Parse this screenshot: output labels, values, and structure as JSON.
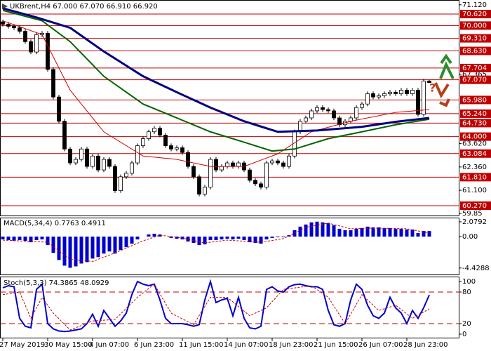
{
  "chart_data": [
    {
      "type": "candlestick",
      "title": "UKBrent,H4  67.000 67.070 66.910 66.920",
      "categories": [
        "27 May 2019",
        null,
        null,
        null,
        null,
        null,
        null,
        null,
        "30 May 15:00",
        null,
        null,
        null,
        null,
        null,
        null,
        null,
        "4 Jun 07:00",
        null,
        null,
        null,
        null,
        null,
        null,
        null,
        "6 Jun 23:00",
        null,
        null,
        null,
        null,
        null,
        null,
        null,
        "11 Jun 15:00",
        null,
        null,
        null,
        null,
        null,
        null,
        null,
        "14 Jun 07:00",
        null,
        null,
        null,
        null,
        null,
        null,
        null,
        "18 Jun 23:00",
        null,
        null,
        null,
        null,
        null,
        null,
        null,
        "21 Jun 15:00",
        null,
        null,
        null,
        null,
        null,
        null,
        null,
        "26 Jun 07:00",
        null,
        null,
        null,
        null,
        null,
        null,
        null,
        "28 Jun 23:00",
        null,
        null,
        null,
        null
      ],
      "open": [
        70.2,
        70.07,
        69.96,
        69.88,
        69.69,
        69.13,
        68.57,
        69.51,
        69.58,
        67.63,
        66.14,
        64.83,
        63.33,
        62.58,
        62.77,
        63.33,
        62.39,
        62.95,
        62.2,
        62.77,
        62.39,
        61.08,
        61.83,
        62.02,
        62.58,
        63.51,
        63.89,
        64.26,
        64.45,
        64.08,
        63.51,
        63.33,
        63.4,
        63.14,
        62.39,
        61.83,
        60.89,
        61.27,
        62.77,
        62.2,
        62.39,
        62.58,
        62.39,
        62.58,
        62.2,
        61.64,
        61.45,
        61.27,
        62.58,
        62.69,
        62.58,
        62.39,
        62.95,
        64.26,
        64.83,
        65.01,
        65.39,
        65.57,
        65.46,
        65.39,
        65.01,
        64.64,
        64.83,
        65.01,
        65.57,
        65.76,
        66.32,
        66.14,
        66.21,
        66.32,
        66.4,
        66.32,
        66.51,
        66.32,
        66.51,
        65.2,
        67.0
      ],
      "high": [
        70.32,
        70.19,
        70.08,
        70.0,
        69.81,
        69.25,
        69.63,
        69.7,
        69.7,
        67.75,
        66.26,
        64.95,
        63.45,
        62.89,
        63.45,
        63.45,
        63.07,
        63.07,
        62.89,
        62.89,
        62.51,
        61.95,
        62.14,
        62.7,
        63.63,
        64.01,
        64.38,
        64.57,
        64.57,
        64.2,
        63.63,
        63.52,
        63.52,
        63.26,
        62.51,
        61.95,
        61.39,
        62.89,
        62.89,
        62.51,
        62.7,
        62.7,
        62.7,
        62.7,
        62.32,
        61.76,
        61.57,
        62.7,
        62.81,
        62.81,
        62.7,
        63.07,
        64.38,
        64.95,
        65.13,
        65.51,
        65.69,
        65.69,
        65.58,
        65.51,
        65.13,
        64.95,
        65.13,
        65.69,
        65.88,
        66.44,
        66.44,
        66.33,
        66.44,
        66.52,
        66.52,
        66.63,
        66.63,
        66.63,
        66.63,
        67.12,
        67.07
      ],
      "low": [
        69.95,
        69.84,
        69.76,
        69.57,
        69.01,
        68.45,
        68.45,
        69.39,
        67.51,
        66.02,
        64.71,
        63.21,
        62.46,
        62.46,
        62.65,
        62.27,
        62.27,
        62.08,
        62.08,
        62.27,
        60.96,
        60.96,
        61.71,
        61.9,
        62.46,
        63.39,
        63.77,
        64.14,
        63.96,
        63.39,
        63.21,
        63.21,
        63.02,
        62.27,
        61.71,
        60.77,
        60.77,
        61.15,
        62.08,
        62.08,
        62.27,
        62.27,
        62.27,
        62.08,
        61.52,
        61.33,
        61.15,
        61.15,
        62.46,
        62.46,
        62.27,
        62.27,
        62.83,
        64.14,
        64.71,
        64.89,
        65.27,
        65.34,
        65.27,
        64.89,
        64.52,
        64.52,
        64.71,
        64.89,
        65.45,
        65.64,
        66.02,
        66.02,
        66.09,
        66.2,
        66.2,
        66.2,
        66.2,
        66.2,
        65.08,
        65.08,
        66.91
      ],
      "close": [
        70.07,
        69.96,
        69.88,
        69.69,
        69.13,
        68.57,
        69.51,
        69.58,
        67.63,
        66.14,
        64.83,
        63.33,
        62.58,
        62.77,
        63.33,
        62.39,
        62.95,
        62.2,
        62.77,
        62.39,
        61.08,
        61.83,
        62.02,
        62.58,
        63.51,
        63.89,
        64.26,
        64.45,
        64.08,
        63.51,
        63.33,
        63.4,
        63.14,
        62.39,
        61.83,
        60.89,
        61.27,
        62.77,
        62.2,
        62.39,
        62.58,
        62.39,
        62.58,
        62.2,
        61.64,
        61.45,
        61.27,
        62.58,
        62.69,
        62.58,
        62.39,
        62.95,
        64.26,
        64.83,
        65.01,
        65.39,
        65.57,
        65.46,
        65.39,
        65.01,
        64.64,
        64.83,
        65.01,
        65.57,
        65.76,
        66.32,
        66.14,
        66.21,
        66.32,
        66.4,
        66.32,
        66.51,
        66.32,
        66.51,
        65.2,
        67.0,
        66.92
      ],
      "up_color": "#ffffff",
      "down_color": "#000000",
      "lines": [
        {
          "color": "#cc0000",
          "width": 1,
          "x": [
            0,
            7,
            12,
            18,
            25,
            31,
            37,
            43,
            49,
            55,
            62,
            70,
            76
          ],
          "values": [
            70.26,
            69.51,
            66.51,
            64.26,
            62.95,
            62.77,
            62.39,
            62.39,
            63.07,
            64.26,
            64.83,
            65.31,
            65.46
          ]
        },
        {
          "color": "#006400",
          "width": 2,
          "x": [
            0,
            7,
            12,
            18,
            25,
            31,
            37,
            43,
            48,
            52,
            58,
            64,
            70,
            76
          ],
          "values": [
            70.82,
            70.26,
            69.13,
            67.26,
            65.76,
            65.01,
            64.26,
            63.7,
            63.22,
            63.33,
            63.89,
            64.26,
            64.64,
            64.94
          ]
        },
        {
          "color": "#000080",
          "width": 3,
          "x": [
            0,
            6,
            12,
            18,
            25,
            31,
            37,
            43,
            49,
            56,
            64,
            70,
            76
          ],
          "values": [
            70.93,
            70.44,
            69.88,
            68.6,
            67.26,
            66.4,
            65.57,
            64.83,
            64.26,
            64.33,
            64.53,
            64.8,
            65.01
          ]
        }
      ],
      "ylim": [
        59.7,
        71.38
      ],
      "yticks": [
        {
          "value": 71.12,
          "label": "71.120"
        },
        67.365,
        {
          "value": 63.62,
          "label": "63.620"
        },
        {
          "value": 62.36,
          "label": "62.360"
        },
        {
          "value": 61.1,
          "label": "61.100"
        },
        59.85
      ],
      "level_color": "#c00000",
      "levels": [
        {
          "value": 70.62,
          "label": "70.620"
        },
        {
          "value": 70,
          "label": "70.000"
        },
        {
          "value": 69.31,
          "label": "69.310"
        },
        {
          "value": 68.63,
          "label": "68.630"
        },
        67.704,
        {
          "value": 67.07,
          "label": "67.070"
        },
        {
          "value": 65.98,
          "label": "65.980"
        },
        {
          "value": 65.24,
          "label": "65.240"
        },
        {
          "value": 64.73,
          "label": "64.730"
        },
        {
          "value": 64,
          "label": "64.000"
        },
        63.084,
        {
          "value": 61.81,
          "label": "61.810"
        },
        {
          "value": 60.27,
          "label": "60.270"
        }
      ],
      "annotation": "?"
    },
    {
      "type": "macd",
      "title": "MACD(5,34,4) 0.7763 0.4911",
      "color": "#0000cd",
      "values": [
        -0.4,
        -0.5,
        -0.6,
        -0.5,
        -0.6,
        -0.8,
        -0.5,
        -0.4,
        -1.2,
        -2.3,
        -3.3,
        -4.1,
        -4.4,
        -4.2,
        -3.8,
        -3.6,
        -3.1,
        -2.9,
        -2.4,
        -2.1,
        -2.4,
        -1.9,
        -1.5,
        -1.0,
        -0.4,
        0.0,
        0.3,
        0.4,
        0.3,
        0.0,
        -0.2,
        -0.3,
        -0.4,
        -0.7,
        -0.9,
        -1.2,
        -1.1,
        -0.5,
        -0.5,
        -0.4,
        -0.3,
        -0.4,
        -0.3,
        -0.5,
        -0.8,
        -0.9,
        -1.0,
        -0.4,
        -0.2,
        -0.1,
        -0.1,
        0.2,
        0.9,
        1.4,
        1.7,
        2.0,
        2.1,
        2.0,
        1.9,
        1.6,
        1.1,
        0.9,
        0.9,
        1.1,
        1.2,
        1.4,
        1.3,
        1.3,
        1.2,
        1.2,
        1.1,
        1.1,
        1.0,
        1.0,
        0.5,
        0.8,
        0.7763
      ],
      "signal": {
        "color": "#cc0000",
        "x": [
          0,
          8,
          12,
          16,
          20,
          25,
          28,
          32,
          36,
          40,
          46,
          50,
          54,
          58,
          62,
          66,
          72,
          76
        ],
        "values": [
          -0.5,
          -0.8,
          -3.2,
          -3.5,
          -2.3,
          -0.6,
          0.2,
          -0.2,
          -0.9,
          -0.5,
          -0.8,
          -0.3,
          1.3,
          1.9,
          1.1,
          1.2,
          1.1,
          0.4911
        ]
      },
      "ylim": [
        -5.44,
        2.67
      ],
      "yticks": [
        2.0792,
        {
          "value": 0,
          "label": "0.00"
        },
        -4.4288
      ]
    },
    {
      "type": "stochastic",
      "title": "Stoch(5,3,3) 74.3865 48.0929",
      "series": [
        {
          "color": "#0000cd",
          "values": [
            88,
            92,
            90,
            30,
            15,
            12,
            85,
            95,
            20,
            10,
            6,
            5,
            6,
            8,
            10,
            20,
            38,
            15,
            45,
            30,
            15,
            25,
            40,
            75,
            100,
            95,
            92,
            95,
            65,
            30,
            20,
            20,
            20,
            18,
            15,
            18,
            65,
            100,
            60,
            65,
            68,
            35,
            70,
            30,
            12,
            10,
            15,
            85,
            90,
            82,
            80,
            90,
            94,
            95,
            92,
            90,
            90,
            85,
            45,
            18,
            15,
            20,
            65,
            95,
            85,
            55,
            35,
            30,
            40,
            70,
            50,
            40,
            20,
            45,
            30,
            50,
            74.3865
          ]
        },
        {
          "color": "#cc0000",
          "x": [
            0,
            3,
            5,
            7,
            9,
            12,
            16,
            20,
            24,
            27,
            30,
            34,
            37,
            40,
            44,
            47,
            50,
            55,
            58,
            61,
            64,
            67,
            70,
            73,
            76
          ],
          "values": [
            75,
            80,
            30,
            70,
            40,
            8,
            25,
            28,
            70,
            95,
            40,
            18,
            70,
            70,
            35,
            50,
            85,
            92,
            70,
            20,
            75,
            45,
            55,
            30,
            48.0929
          ]
        }
      ],
      "ylim": [
        -8,
        108
      ],
      "yticks": [
        100,
        80,
        20,
        0
      ],
      "level_lines": [
        80,
        20
      ],
      "level_color": "#c00000"
    }
  ]
}
